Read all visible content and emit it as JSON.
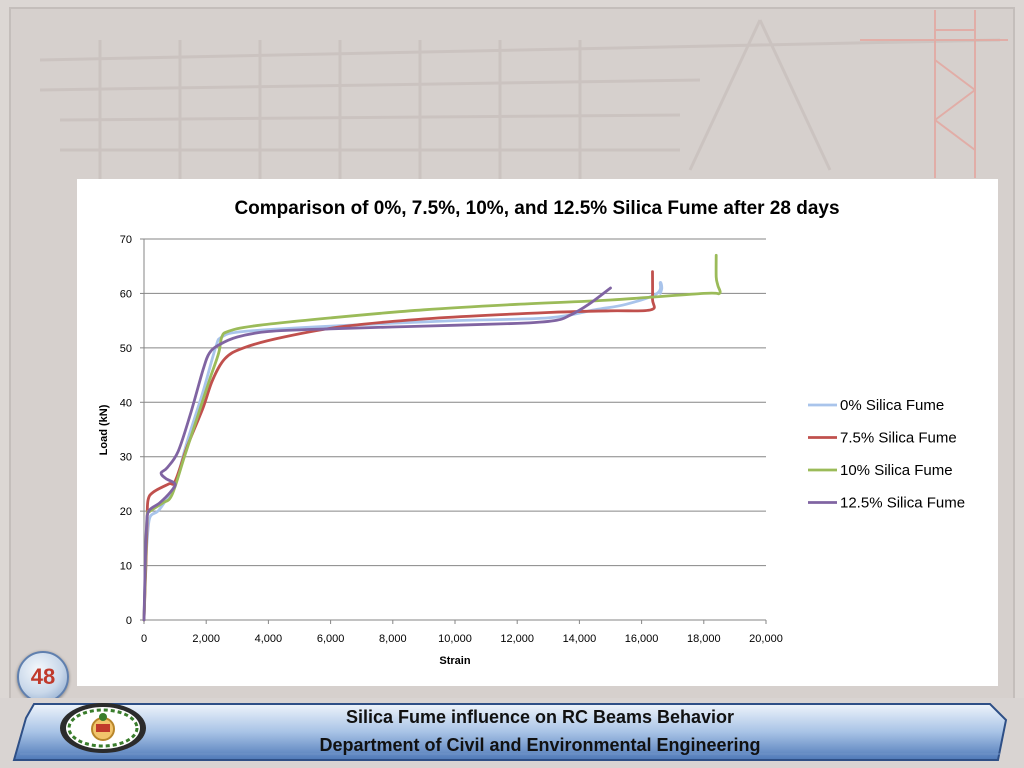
{
  "slide": {
    "page_number": "48",
    "footer_line1": "Silica Fume influence on RC Beams Behavior",
    "footer_line2": "Department of Civil and Environmental Engineering"
  },
  "chart_data": {
    "type": "line",
    "title": "Comparison of 0%, 7.5%, 10%, and 12.5% Silica Fume after 28 days",
    "xlabel": "Strain",
    "ylabel": "Load (kN)",
    "xlim": [
      0,
      20000
    ],
    "ylim": [
      0,
      70
    ],
    "x_ticks": [
      0,
      2000,
      4000,
      6000,
      8000,
      10000,
      12000,
      14000,
      16000,
      18000,
      20000
    ],
    "x_tick_labels": [
      "0",
      "2,000",
      "4,000",
      "6,000",
      "8,000",
      "10,000",
      "12,000",
      "14,000",
      "16,000",
      "18,000",
      "20,000"
    ],
    "y_ticks": [
      0,
      10,
      20,
      30,
      40,
      50,
      60,
      70
    ],
    "y_tick_labels": [
      "0",
      "10",
      "20",
      "30",
      "40",
      "50",
      "60",
      "70"
    ],
    "grid": "horizontal",
    "legend_position": "right",
    "series": [
      {
        "name": "0% Silica Fume",
        "color": "#a9c4eb",
        "points": [
          [
            0,
            0
          ],
          [
            50,
            10
          ],
          [
            120,
            16
          ],
          [
            200,
            19
          ],
          [
            450,
            20
          ],
          [
            700,
            22
          ],
          [
            1000,
            25
          ],
          [
            1400,
            33
          ],
          [
            1900,
            42
          ],
          [
            2300,
            50
          ],
          [
            2500,
            52
          ],
          [
            3200,
            53
          ],
          [
            6000,
            54
          ],
          [
            10000,
            55
          ],
          [
            13000,
            55.5
          ],
          [
            14500,
            57
          ],
          [
            15500,
            58
          ],
          [
            16500,
            60
          ],
          [
            16600,
            62
          ],
          [
            16650,
            61
          ],
          [
            16600,
            60
          ]
        ]
      },
      {
        "name": "7.5% Silica Fume",
        "color": "#c0504d",
        "points": [
          [
            0,
            0
          ],
          [
            60,
            10
          ],
          [
            100,
            18
          ],
          [
            130,
            22
          ],
          [
            300,
            23.5
          ],
          [
            800,
            25
          ],
          [
            1000,
            25.5
          ],
          [
            1400,
            32
          ],
          [
            1900,
            39
          ],
          [
            2200,
            44
          ],
          [
            2600,
            48
          ],
          [
            3200,
            50
          ],
          [
            4500,
            52
          ],
          [
            6500,
            54
          ],
          [
            9500,
            55.5
          ],
          [
            13000,
            56.5
          ],
          [
            15000,
            56.8
          ],
          [
            16300,
            57
          ],
          [
            16350,
            59
          ],
          [
            16350,
            64
          ]
        ]
      },
      {
        "name": "10% Silica Fume",
        "color": "#9bbb59",
        "points": [
          [
            0,
            0
          ],
          [
            50,
            10
          ],
          [
            100,
            19
          ],
          [
            200,
            20
          ],
          [
            600,
            21.5
          ],
          [
            900,
            23
          ],
          [
            1300,
            30
          ],
          [
            1700,
            37
          ],
          [
            2100,
            44
          ],
          [
            2400,
            49
          ],
          [
            2500,
            52
          ],
          [
            2700,
            53
          ],
          [
            3500,
            54
          ],
          [
            6000,
            55.5
          ],
          [
            9000,
            57
          ],
          [
            12000,
            58
          ],
          [
            15000,
            58.8
          ],
          [
            18000,
            60
          ],
          [
            18500,
            60
          ],
          [
            18450,
            61.5
          ],
          [
            18400,
            63
          ],
          [
            18400,
            67
          ]
        ]
      },
      {
        "name": "12.5% Silica Fume",
        "color": "#8064a2",
        "points": [
          [
            0,
            0
          ],
          [
            40,
            10
          ],
          [
            80,
            17
          ],
          [
            150,
            20
          ],
          [
            500,
            21.5
          ],
          [
            850,
            23.5
          ],
          [
            1000,
            25
          ],
          [
            700,
            26
          ],
          [
            550,
            27
          ],
          [
            750,
            28
          ],
          [
            1100,
            31
          ],
          [
            1500,
            38
          ],
          [
            1900,
            46
          ],
          [
            2100,
            49
          ],
          [
            2400,
            50.5
          ],
          [
            3000,
            52
          ],
          [
            4000,
            53
          ],
          [
            6000,
            53.5
          ],
          [
            9000,
            54
          ],
          [
            12000,
            54.5
          ],
          [
            13200,
            55
          ],
          [
            13700,
            56
          ],
          [
            14300,
            58
          ],
          [
            15000,
            61
          ]
        ]
      }
    ]
  }
}
